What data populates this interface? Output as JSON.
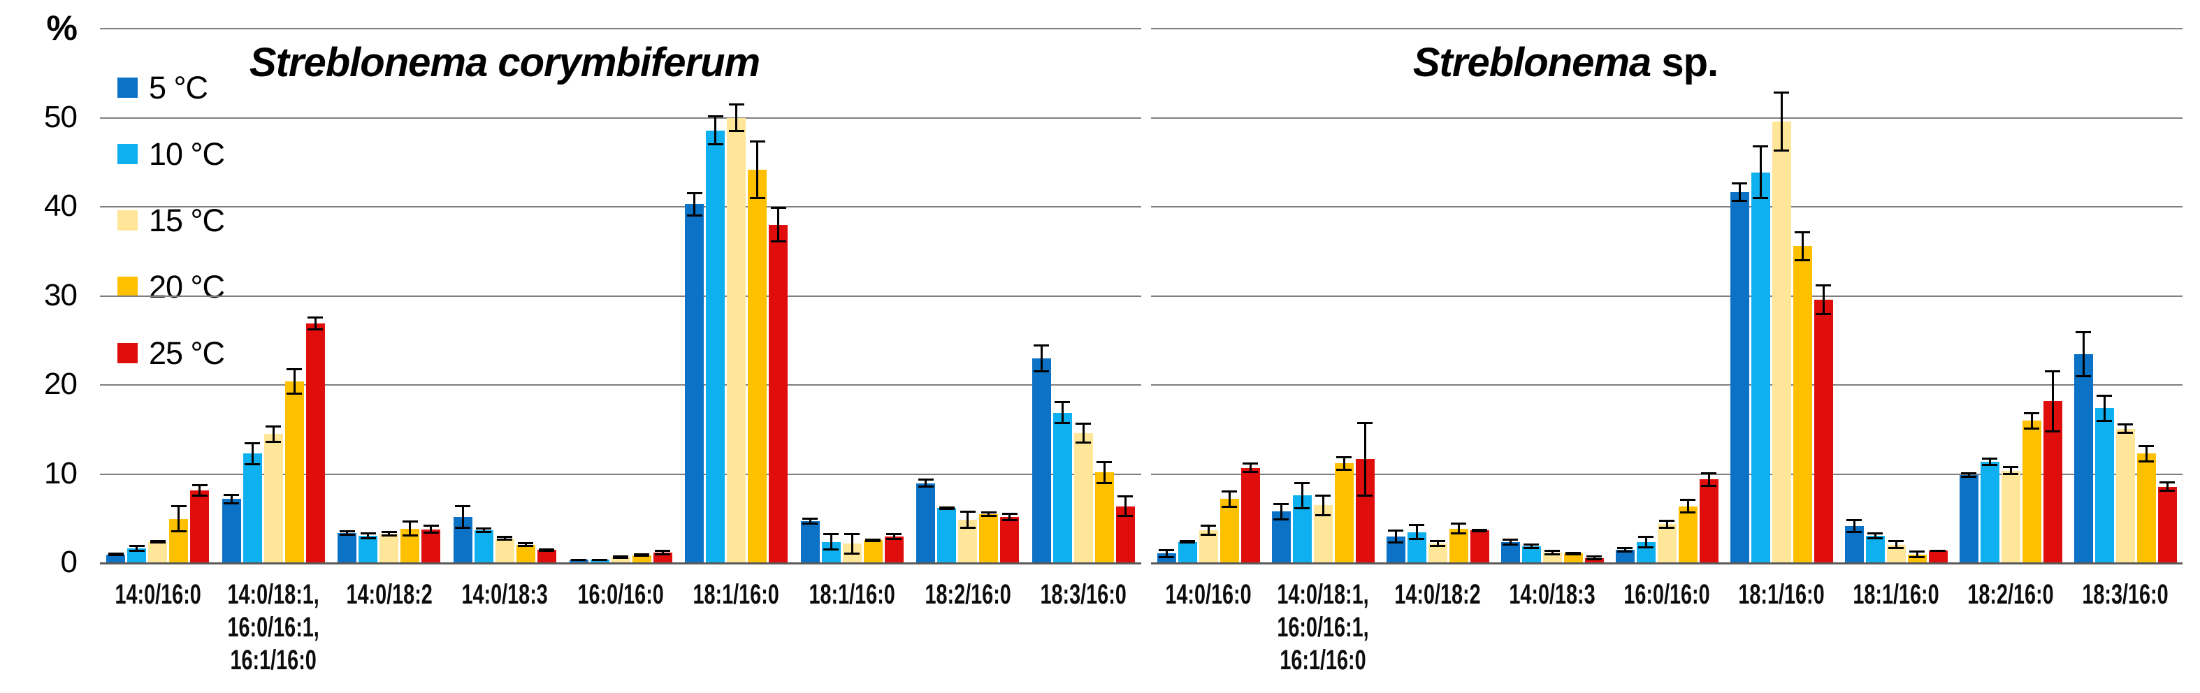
{
  "yaxis": {
    "unit_label": "%",
    "ticks": [
      {
        "label": "%",
        "value": 60
      },
      {
        "label": "50",
        "value": 50
      },
      {
        "label": "40",
        "value": 40
      },
      {
        "label": "30",
        "value": 30
      },
      {
        "label": "20",
        "value": 20
      },
      {
        "label": "10",
        "value": 10
      },
      {
        "label": "0",
        "value": 0
      }
    ]
  },
  "legend": {
    "items": [
      {
        "label": "5 °C",
        "color": "#0C72C6"
      },
      {
        "label": "10 °C",
        "color": "#0FB0F0"
      },
      {
        "label": "15 °C",
        "color": "#FFE699"
      },
      {
        "label": "20 °C",
        "color": "#FFC000"
      },
      {
        "label": "25 °C",
        "color": "#E00D0D"
      }
    ]
  },
  "chart_data": [
    {
      "type": "bar",
      "title": "Streblonema corymbiferum",
      "title_italic": "Streblonema corymbiferum",
      "title_regular": "",
      "ylabel": "%",
      "ylim": [
        0,
        60
      ],
      "grid": true,
      "legend_position": "top-left",
      "categories": [
        "14:0/16:0",
        "14:0/18:1,\n16:0/16:1,\n16:1/16:0",
        "14:0/18:2",
        "14:0/18:3",
        "16:0/16:0",
        "18:1/16:0",
        "18:1/16:0",
        "18:2/16:0",
        "18:3/16:0"
      ],
      "series": [
        {
          "name": "5 °C",
          "color": "#0C72C6",
          "values": [
            0.9,
            7.1,
            3.3,
            5.1,
            0.3,
            40.2,
            4.6,
            8.9,
            22.9
          ],
          "errors": [
            0.2,
            0.6,
            0.3,
            1.3,
            0.1,
            1.4,
            0.4,
            0.5,
            1.6
          ]
        },
        {
          "name": "10 °C",
          "color": "#0FB0F0",
          "values": [
            1.6,
            12.2,
            3.0,
            3.6,
            0.3,
            48.5,
            2.3,
            6.1,
            16.8
          ],
          "errors": [
            0.4,
            1.3,
            0.4,
            0.3,
            0.1,
            1.7,
            1.0,
            0.2,
            1.3
          ]
        },
        {
          "name": "15 °C",
          "color": "#FFE699",
          "values": [
            2.3,
            14.4,
            3.2,
            2.7,
            0.6,
            49.9,
            2.1,
            4.8,
            14.5
          ],
          "errors": [
            0.2,
            1.0,
            0.3,
            0.3,
            0.2,
            1.6,
            1.2,
            1.0,
            1.2
          ]
        },
        {
          "name": "20 °C",
          "color": "#FFC000",
          "values": [
            4.9,
            20.3,
            3.8,
            2.0,
            0.8,
            44.1,
            2.5,
            5.4,
            10.1
          ],
          "errors": [
            1.5,
            1.5,
            0.9,
            0.3,
            0.2,
            3.3,
            0.2,
            0.3,
            1.3
          ]
        },
        {
          "name": "25 °C",
          "color": "#E00D0D",
          "values": [
            8.1,
            26.8,
            3.7,
            1.4,
            1.1,
            37.9,
            2.9,
            5.1,
            6.3
          ],
          "errors": [
            0.7,
            0.8,
            0.5,
            0.2,
            0.3,
            2.0,
            0.4,
            0.5,
            1.2
          ]
        }
      ]
    },
    {
      "type": "bar",
      "title": "Streblonema sp.",
      "title_italic": "Streblonema",
      "title_regular": " sp.",
      "ylabel": "%",
      "ylim": [
        0,
        60
      ],
      "grid": true,
      "legend_position": "none",
      "categories": [
        "14:0/16:0",
        "14:0/18:1,\n16:0/16:1,\n16:1/16:0",
        "14:0/18:2",
        "14:0/18:3",
        "16:0/16:0",
        "18:1/16:0",
        "18:1/16:0",
        "18:2/16:0",
        "18:3/16:0"
      ],
      "series": [
        {
          "name": "5 °C",
          "color": "#0C72C6",
          "values": [
            1.0,
            5.7,
            2.9,
            2.3,
            1.4,
            41.6,
            4.1,
            9.8,
            23.4
          ],
          "errors": [
            0.5,
            1.0,
            0.8,
            0.4,
            0.3,
            1.1,
            0.8,
            0.3,
            2.6
          ]
        },
        {
          "name": "10 °C",
          "color": "#0FB0F0",
          "values": [
            2.3,
            7.5,
            3.4,
            1.8,
            2.3,
            43.8,
            3.0,
            11.3,
            17.3
          ],
          "errors": [
            0.2,
            1.5,
            0.9,
            0.3,
            0.7,
            3.0,
            0.4,
            0.5,
            1.5
          ]
        },
        {
          "name": "15 °C",
          "color": "#FFE699",
          "values": [
            3.6,
            6.4,
            2.1,
            1.1,
            4.3,
            49.5,
            2.0,
            10.3,
            15.0
          ],
          "errors": [
            0.6,
            1.2,
            0.4,
            0.3,
            0.5,
            3.4,
            0.5,
            0.5,
            0.6
          ]
        },
        {
          "name": "20 °C",
          "color": "#FFC000",
          "values": [
            7.1,
            11.1,
            3.8,
            1.0,
            6.3,
            35.5,
            0.9,
            15.9,
            12.2
          ],
          "errors": [
            1.0,
            0.8,
            0.7,
            0.2,
            0.8,
            1.7,
            0.4,
            1.0,
            1.0
          ]
        },
        {
          "name": "25 °C",
          "color": "#E00D0D",
          "values": [
            10.6,
            11.6,
            3.6,
            0.5,
            9.3,
            29.5,
            1.3,
            18.1,
            8.5
          ],
          "errors": [
            0.6,
            4.2,
            0.2,
            0.3,
            0.8,
            1.7,
            0.15,
            3.5,
            0.6
          ]
        }
      ]
    }
  ]
}
